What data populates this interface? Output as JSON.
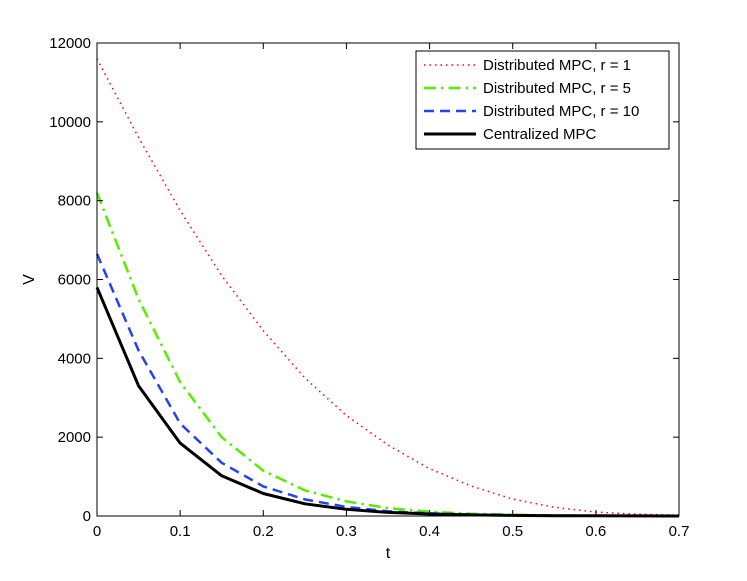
{
  "chart_data": {
    "type": "line",
    "title": "",
    "xlabel": "t",
    "ylabel": "V",
    "xlim": [
      0,
      0.7
    ],
    "ylim": [
      0,
      12000
    ],
    "xticks": [
      0,
      0.1,
      0.2,
      0.3,
      0.4,
      0.5,
      0.6,
      0.7
    ],
    "xtick_labels": [
      "0",
      "0.1",
      "0.2",
      "0.3",
      "0.4",
      "0.5",
      "0.6",
      "0.7"
    ],
    "yticks": [
      0,
      2000,
      4000,
      6000,
      8000,
      10000,
      12000
    ],
    "ytick_labels": [
      "0",
      "2000",
      "4000",
      "6000",
      "8000",
      "10000",
      "12000"
    ],
    "grid": false,
    "legend_position": "top-right",
    "x": [
      0,
      0.05,
      0.1,
      0.15,
      0.2,
      0.25,
      0.3,
      0.35,
      0.4,
      0.45,
      0.5,
      0.55,
      0.6,
      0.65,
      0.7
    ],
    "series": [
      {
        "name": "Distributed MPC, r = 1",
        "color": "#ff0000",
        "style": "dotted",
        "values": [
          11600,
          9600,
          7750,
          6100,
          4700,
          3500,
          2550,
          1800,
          1200,
          760,
          430,
          220,
          100,
          45,
          20
        ]
      },
      {
        "name": "Distributed MPC, r = 5",
        "color": "#55ee00",
        "style": "dashdot",
        "values": [
          8200,
          5500,
          3400,
          2000,
          1150,
          650,
          370,
          200,
          110,
          55,
          30,
          15,
          8,
          4,
          2
        ]
      },
      {
        "name": "Distributed MPC, r = 10",
        "color": "#2244ee",
        "style": "dashed",
        "values": [
          6650,
          4200,
          2350,
          1350,
          750,
          420,
          230,
          120,
          65,
          35,
          18,
          9,
          5,
          2,
          1
        ]
      },
      {
        "name": "Centralized MPC",
        "color": "#000000",
        "style": "solid",
        "values": [
          5800,
          3300,
          1850,
          1020,
          570,
          310,
          170,
          92,
          50,
          27,
          14,
          7,
          4,
          2,
          1
        ]
      }
    ]
  }
}
